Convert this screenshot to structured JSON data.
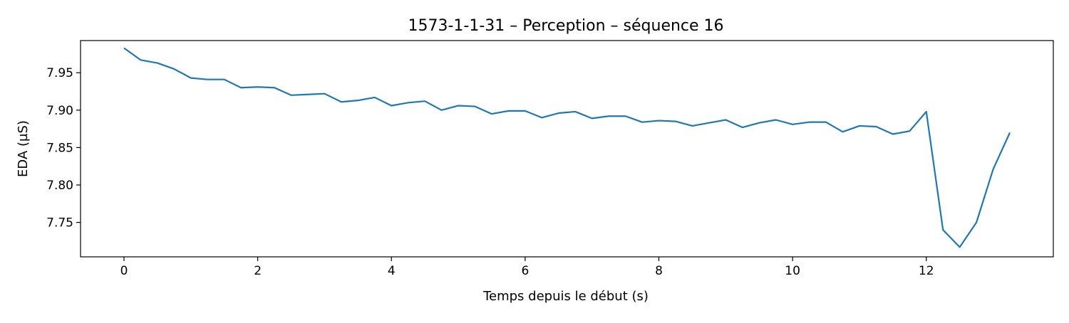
{
  "chart_data": {
    "type": "line",
    "title": "1573-1-1-31 – Perception – séquence 16",
    "xlabel": "Temps depuis le début (s)",
    "ylabel": "EDA (µS)",
    "xlim": [
      -0.65,
      13.9
    ],
    "ylim": [
      7.704,
      7.993
    ],
    "xticks": [
      0,
      2,
      4,
      6,
      8,
      10,
      12
    ],
    "xtick_labels": [
      "0",
      "2",
      "4",
      "6",
      "8",
      "10",
      "12"
    ],
    "yticks": [
      7.75,
      7.8,
      7.85,
      7.9,
      7.95
    ],
    "ytick_labels": [
      "7.75",
      "7.80",
      "7.85",
      "7.90",
      "7.95"
    ],
    "grid": false,
    "series": [
      {
        "color": "#1f77b4",
        "x": [
          0,
          0.25,
          0.5,
          0.75,
          1.0,
          1.25,
          1.5,
          1.75,
          2.0,
          2.25,
          2.5,
          2.75,
          3.0,
          3.25,
          3.5,
          3.75,
          4.0,
          4.25,
          4.5,
          4.75,
          5.0,
          5.25,
          5.5,
          5.75,
          6.0,
          6.25,
          6.5,
          6.75,
          7.0,
          7.25,
          7.5,
          7.75,
          8.0,
          8.25,
          8.5,
          8.75,
          9.0,
          9.25,
          9.5,
          9.75,
          10.0,
          10.25,
          10.5,
          10.75,
          11.0,
          11.25,
          11.5,
          11.75,
          12.0,
          12.25,
          12.5,
          12.75,
          13.0,
          13.25
        ],
        "y": [
          7.983,
          7.967,
          7.963,
          7.955,
          7.943,
          7.941,
          7.941,
          7.93,
          7.931,
          7.93,
          7.92,
          7.921,
          7.922,
          7.911,
          7.913,
          7.917,
          7.906,
          7.91,
          7.912,
          7.9,
          7.906,
          7.905,
          7.895,
          7.899,
          7.899,
          7.89,
          7.896,
          7.898,
          7.889,
          7.892,
          7.892,
          7.884,
          7.886,
          7.885,
          7.879,
          7.883,
          7.887,
          7.877,
          7.883,
          7.887,
          7.881,
          7.884,
          7.884,
          7.871,
          7.879,
          7.878,
          7.868,
          7.872,
          7.898,
          7.74,
          7.717,
          7.75,
          7.821,
          7.87
        ]
      }
    ]
  }
}
